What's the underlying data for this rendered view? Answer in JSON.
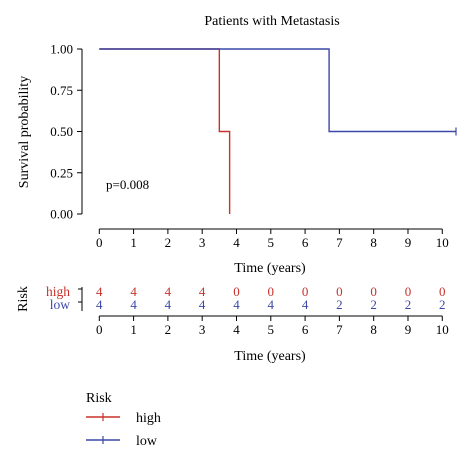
{
  "colors": {
    "high": "#c8322a",
    "low": "#3a48a8",
    "axis": "#000000"
  },
  "chart_data": {
    "type": "line",
    "title": "Patients with Metastasis",
    "xlabel": "Time (years)",
    "ylabel": "Survival probability",
    "xlim": [
      -0.3,
      10.4
    ],
    "ylim": [
      0,
      1
    ],
    "x_ticks": [
      "0",
      "1",
      "2",
      "3",
      "4",
      "5",
      "6",
      "7",
      "8",
      "9",
      "10"
    ],
    "y_ticks": [
      "0.00",
      "0.25",
      "0.50",
      "0.75",
      "1.00"
    ],
    "annotation": "p=0.008",
    "series": [
      {
        "name": "high",
        "color": "#c8322a",
        "steps": [
          [
            0,
            1.0
          ],
          [
            3.5,
            0.5
          ],
          [
            3.8,
            0.0
          ]
        ],
        "censor": []
      },
      {
        "name": "low",
        "color": "#3a48a8",
        "steps": [
          [
            0,
            1.0
          ],
          [
            6.7,
            0.5
          ]
        ],
        "end": 10.4,
        "censor": [
          [
            10.4,
            0.5
          ]
        ]
      }
    ]
  },
  "risk_table": {
    "title": "Risk",
    "xlabel": "Time (years)",
    "x_ticks": [
      "0",
      "1",
      "2",
      "3",
      "4",
      "5",
      "6",
      "7",
      "8",
      "9",
      "10"
    ],
    "rows": [
      {
        "label": "high",
        "color": "#c8322a",
        "counts": [
          "4",
          "4",
          "4",
          "4",
          "0",
          "0",
          "0",
          "0",
          "0",
          "0",
          "0"
        ]
      },
      {
        "label": "low",
        "color": "#3a48a8",
        "counts": [
          "4",
          "4",
          "4",
          "4",
          "4",
          "4",
          "4",
          "2",
          "2",
          "2",
          "2"
        ]
      }
    ]
  },
  "legend": {
    "title": "Risk",
    "items": [
      {
        "label": "high",
        "color": "#c8322a"
      },
      {
        "label": "low",
        "color": "#3a48a8"
      }
    ]
  }
}
